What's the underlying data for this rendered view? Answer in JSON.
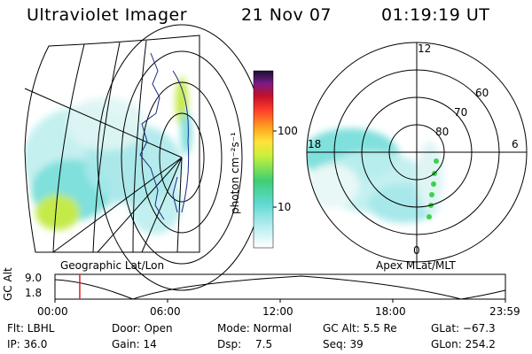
{
  "header": {
    "instrument": "Ultraviolet Imager",
    "date": "21 Nov 07",
    "time": "01:19:19 UT"
  },
  "geo_panel": {
    "caption": "Geographic Lat/Lon"
  },
  "polar_panel": {
    "caption": "Apex MLat/MLT",
    "mlt_labels": [
      "12",
      "18",
      "6",
      "0"
    ],
    "lat_labels": [
      "60",
      "70",
      "80"
    ]
  },
  "colorbar": {
    "unit_label": "photon cm⁻²s⁻¹",
    "ticks": [
      "100",
      "10"
    ]
  },
  "altitude_strip": {
    "axis_label": "GC Alt",
    "y_ticks": [
      "9.0",
      "1.8"
    ],
    "time_ticks": [
      "00:00",
      "06:00",
      "12:00",
      "18:00",
      "23:59"
    ],
    "current_time_fraction": 0.055
  },
  "status": {
    "filter": "Flt: LBHL",
    "ip": "IP: 36.0",
    "door": "Door: Open",
    "gain": "Gain: 14",
    "mode": "Mode: Normal",
    "dsp_label": "Dsp:",
    "dsp_value": "7.5",
    "gc_alt": "GC Alt: 5.5 Re",
    "seq": "Seq: 39",
    "glat": "GLat: −67.3",
    "glon": "GLon: 254.2"
  },
  "colors": {
    "aurora_cyan": "#7fe0dc",
    "aurora_green": "#3fd14a",
    "grid": "#000000",
    "marker": "#e02020"
  }
}
